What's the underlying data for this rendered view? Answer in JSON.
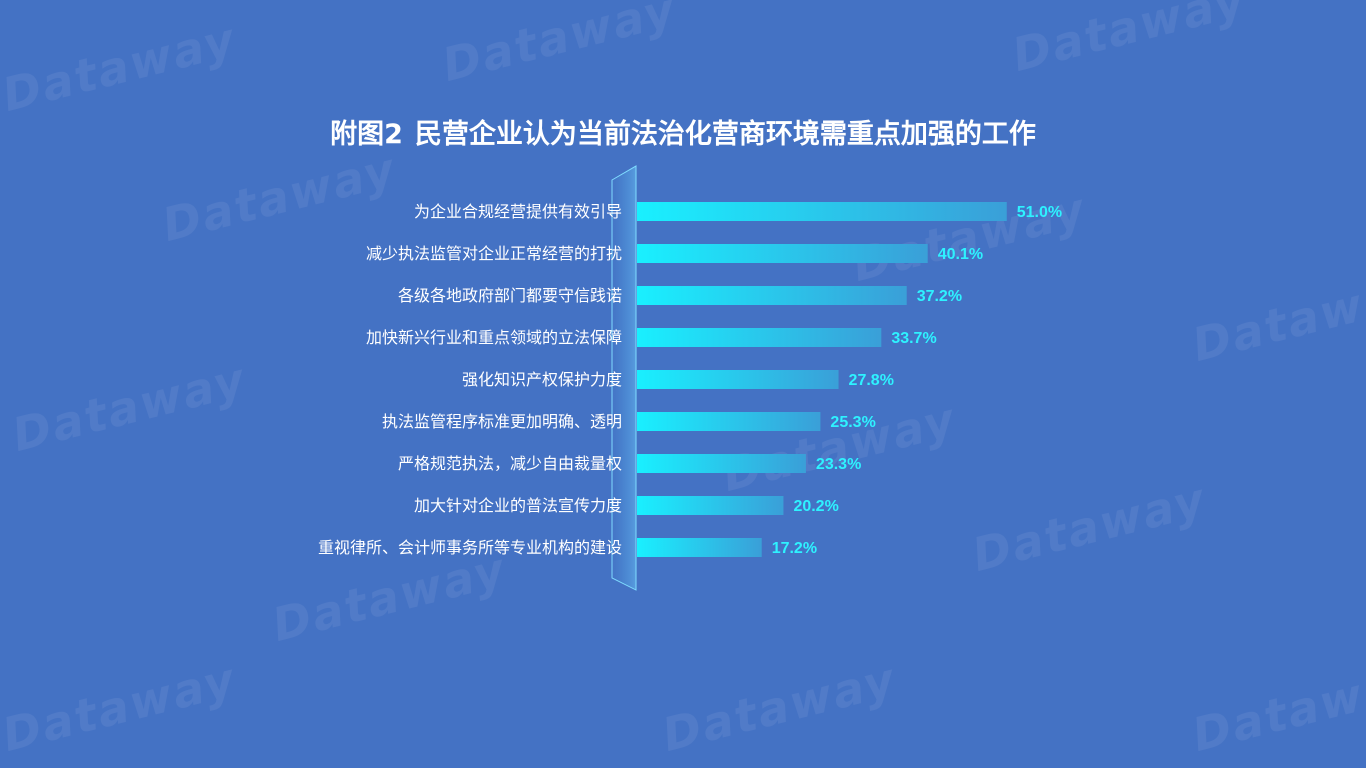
{
  "title_prefix": "附图2",
  "title_main": "民营企业认为当前法治化营商环境需重点加强的工作",
  "watermark_text": "Dataway",
  "chart_data": {
    "type": "bar",
    "orientation": "horizontal",
    "title": "附图2 民营企业认为当前法治化营商环境需重点加强的工作",
    "categories": [
      "为企业合规经营提供有效引导",
      "减少执法监管对企业正常经营的打扰",
      "各级各地政府部门都要守信践诺",
      "加快新兴行业和重点领域的立法保障",
      "强化知识产权保护力度",
      "执法监管程序标准更加明确、透明",
      "严格规范执法，减少自由裁量权",
      "加大针对企业的普法宣传力度",
      "重视律所、会计师事务所等专业机构的建设"
    ],
    "values": [
      51.0,
      40.1,
      37.2,
      33.7,
      27.8,
      25.3,
      23.3,
      20.2,
      17.2
    ],
    "value_labels": [
      "51.0%",
      "40.1%",
      "37.2%",
      "33.7%",
      "27.8%",
      "25.3%",
      "23.3%",
      "20.2%",
      "17.2%"
    ],
    "unit": "%",
    "colors": {
      "bar_start": "#19f0ff",
      "bar_end": "#3a9fd8",
      "label": "#2ef2ff",
      "background": "#4472c4"
    }
  }
}
